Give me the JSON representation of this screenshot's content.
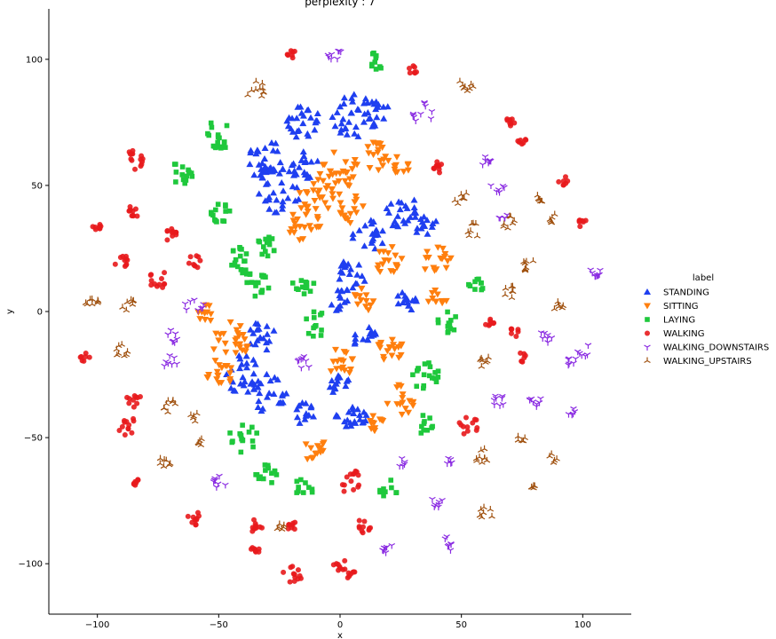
{
  "chart_data": {
    "type": "scatter",
    "title": "perplexity : 7",
    "xlabel": "x",
    "ylabel": "y",
    "xlim": [
      -120,
      120
    ],
    "ylim": [
      -120,
      120
    ],
    "x_ticks": [
      -100,
      -50,
      0,
      50,
      100
    ],
    "y_ticks": [
      -100,
      -50,
      0,
      50,
      100
    ],
    "x_tick_labels": [
      "−100",
      "−50",
      "0",
      "50",
      "100"
    ],
    "y_tick_labels": [
      "−100",
      "−50",
      "0",
      "50",
      "100"
    ],
    "grid": false,
    "legend_title": "label",
    "legend_position": "right",
    "series": [
      {
        "name": "STANDING",
        "marker": "triangle-up",
        "color": "#1f3ff0",
        "clusters": [
          {
            "x": -30,
            "y": 60,
            "r": 8,
            "n": 30
          },
          {
            "x": -15,
            "y": 75,
            "r": 7,
            "n": 25
          },
          {
            "x": 5,
            "y": 78,
            "r": 9,
            "n": 28
          },
          {
            "x": 15,
            "y": 78,
            "r": 6,
            "n": 18
          },
          {
            "x": -25,
            "y": 48,
            "r": 9,
            "n": 28
          },
          {
            "x": -15,
            "y": 58,
            "r": 6,
            "n": 18
          },
          {
            "x": 25,
            "y": 40,
            "r": 7,
            "n": 22
          },
          {
            "x": 35,
            "y": 35,
            "r": 5,
            "n": 14
          },
          {
            "x": 12,
            "y": 30,
            "r": 7,
            "n": 20
          },
          {
            "x": 5,
            "y": 15,
            "r": 6,
            "n": 18
          },
          {
            "x": 0,
            "y": 5,
            "r": 5,
            "n": 14
          },
          {
            "x": 28,
            "y": 5,
            "r": 5,
            "n": 14
          },
          {
            "x": -32,
            "y": -10,
            "r": 6,
            "n": 18
          },
          {
            "x": -40,
            "y": -25,
            "r": 8,
            "n": 25
          },
          {
            "x": -30,
            "y": -32,
            "r": 8,
            "n": 24
          },
          {
            "x": -15,
            "y": -40,
            "r": 5,
            "n": 14
          },
          {
            "x": 5,
            "y": -40,
            "r": 7,
            "n": 22
          },
          {
            "x": 0,
            "y": -30,
            "r": 5,
            "n": 14
          },
          {
            "x": 10,
            "y": -10,
            "r": 5,
            "n": 14
          }
        ]
      },
      {
        "name": "SITTING",
        "marker": "triangle-down",
        "color": "#ff7f0e",
        "clusters": [
          {
            "x": 0,
            "y": 55,
            "r": 9,
            "n": 28
          },
          {
            "x": 15,
            "y": 62,
            "r": 6,
            "n": 18
          },
          {
            "x": -10,
            "y": 45,
            "r": 8,
            "n": 24
          },
          {
            "x": -15,
            "y": 35,
            "r": 7,
            "n": 20
          },
          {
            "x": 5,
            "y": 40,
            "r": 6,
            "n": 16
          },
          {
            "x": 25,
            "y": 58,
            "r": 4,
            "n": 10
          },
          {
            "x": 20,
            "y": 20,
            "r": 6,
            "n": 18
          },
          {
            "x": 40,
            "y": 20,
            "r": 6,
            "n": 16
          },
          {
            "x": 40,
            "y": 5,
            "r": 4,
            "n": 10
          },
          {
            "x": 10,
            "y": 5,
            "r": 5,
            "n": 14
          },
          {
            "x": -45,
            "y": -12,
            "r": 8,
            "n": 24
          },
          {
            "x": -50,
            "y": -25,
            "r": 6,
            "n": 18
          },
          {
            "x": -55,
            "y": 0,
            "r": 4,
            "n": 10
          },
          {
            "x": 0,
            "y": -20,
            "r": 6,
            "n": 16
          },
          {
            "x": 20,
            "y": -15,
            "r": 6,
            "n": 18
          },
          {
            "x": 25,
            "y": -35,
            "r": 6,
            "n": 16
          },
          {
            "x": 15,
            "y": -45,
            "r": 4,
            "n": 12
          },
          {
            "x": -10,
            "y": -55,
            "r": 5,
            "n": 14
          }
        ]
      },
      {
        "name": "LAYING",
        "marker": "square",
        "color": "#1fc83c",
        "clusters": [
          {
            "x": -50,
            "y": 70,
            "r": 6,
            "n": 18
          },
          {
            "x": -65,
            "y": 55,
            "r": 5,
            "n": 14
          },
          {
            "x": -50,
            "y": 40,
            "r": 5,
            "n": 14
          },
          {
            "x": -40,
            "y": 20,
            "r": 6,
            "n": 18
          },
          {
            "x": -30,
            "y": 25,
            "r": 5,
            "n": 14
          },
          {
            "x": -35,
            "y": 10,
            "r": 6,
            "n": 16
          },
          {
            "x": -15,
            "y": 10,
            "r": 5,
            "n": 12
          },
          {
            "x": -10,
            "y": -5,
            "r": 5,
            "n": 12
          },
          {
            "x": 15,
            "y": 100,
            "r": 4,
            "n": 10
          },
          {
            "x": 55,
            "y": 10,
            "r": 4,
            "n": 10
          },
          {
            "x": 45,
            "y": -5,
            "r": 5,
            "n": 12
          },
          {
            "x": 35,
            "y": -25,
            "r": 6,
            "n": 18
          },
          {
            "x": 35,
            "y": -45,
            "r": 4,
            "n": 10
          },
          {
            "x": -40,
            "y": -50,
            "r": 6,
            "n": 16
          },
          {
            "x": -30,
            "y": -65,
            "r": 5,
            "n": 14
          },
          {
            "x": -15,
            "y": -70,
            "r": 4,
            "n": 10
          },
          {
            "x": 20,
            "y": -70,
            "r": 4,
            "n": 10
          }
        ]
      },
      {
        "name": "WALKING",
        "marker": "circle",
        "color": "#e8191c",
        "clusters": [
          {
            "x": -20,
            "y": 102,
            "r": 2,
            "n": 8
          },
          {
            "x": 30,
            "y": 96,
            "r": 2,
            "n": 7
          },
          {
            "x": -85,
            "y": 60,
            "r": 4,
            "n": 14
          },
          {
            "x": -85,
            "y": 40,
            "r": 3,
            "n": 10
          },
          {
            "x": -100,
            "y": 33,
            "r": 2,
            "n": 8
          },
          {
            "x": -90,
            "y": 20,
            "r": 3,
            "n": 10
          },
          {
            "x": -70,
            "y": 30,
            "r": 3,
            "n": 10
          },
          {
            "x": -75,
            "y": 13,
            "r": 4,
            "n": 12
          },
          {
            "x": -60,
            "y": 20,
            "r": 3,
            "n": 9
          },
          {
            "x": 40,
            "y": 57,
            "r": 3,
            "n": 10
          },
          {
            "x": 70,
            "y": 75,
            "r": 2,
            "n": 8
          },
          {
            "x": 75,
            "y": 67,
            "r": 2,
            "n": 7
          },
          {
            "x": 92,
            "y": 52,
            "r": 2,
            "n": 7
          },
          {
            "x": 100,
            "y": 35,
            "r": 2,
            "n": 7
          },
          {
            "x": 62,
            "y": -5,
            "r": 2,
            "n": 7
          },
          {
            "x": 72,
            "y": -8,
            "r": 2,
            "n": 7
          },
          {
            "x": 75,
            "y": -18,
            "r": 2,
            "n": 7
          },
          {
            "x": -105,
            "y": -18,
            "r": 2,
            "n": 7
          },
          {
            "x": -85,
            "y": -35,
            "r": 3,
            "n": 10
          },
          {
            "x": -88,
            "y": -45,
            "r": 4,
            "n": 12
          },
          {
            "x": 53,
            "y": -45,
            "r": 4,
            "n": 12
          },
          {
            "x": -85,
            "y": -67,
            "r": 2,
            "n": 7
          },
          {
            "x": 5,
            "y": -68,
            "r": 5,
            "n": 14
          },
          {
            "x": -60,
            "y": -82,
            "r": 3,
            "n": 10
          },
          {
            "x": -35,
            "y": -85,
            "r": 3,
            "n": 10
          },
          {
            "x": -20,
            "y": -85,
            "r": 2,
            "n": 8
          },
          {
            "x": 10,
            "y": -85,
            "r": 3,
            "n": 10
          },
          {
            "x": -35,
            "y": -95,
            "r": 2,
            "n": 8
          },
          {
            "x": -20,
            "y": -105,
            "r": 4,
            "n": 12
          },
          {
            "x": 0,
            "y": -100,
            "r": 3,
            "n": 9
          },
          {
            "x": 5,
            "y": -105,
            "r": 2,
            "n": 7
          }
        ]
      },
      {
        "name": "WALKING_DOWNSTAIRS",
        "marker": "tri-down",
        "color": "#8a2be2",
        "clusters": [
          {
            "x": -2,
            "y": 102,
            "r": 3,
            "n": 8
          },
          {
            "x": 35,
            "y": 78,
            "r": 5,
            "n": 10
          },
          {
            "x": 60,
            "y": 60,
            "r": 3,
            "n": 8
          },
          {
            "x": 65,
            "y": 50,
            "r": 3,
            "n": 6
          },
          {
            "x": 67,
            "y": 38,
            "r": 2,
            "n": 5
          },
          {
            "x": 105,
            "y": 15,
            "r": 3,
            "n": 9
          },
          {
            "x": 85,
            "y": -10,
            "r": 3,
            "n": 7
          },
          {
            "x": 95,
            "y": -20,
            "r": 3,
            "n": 6
          },
          {
            "x": 100,
            "y": -15,
            "r": 3,
            "n": 6
          },
          {
            "x": 80,
            "y": -35,
            "r": 3,
            "n": 8
          },
          {
            "x": 65,
            "y": -35,
            "r": 3,
            "n": 8
          },
          {
            "x": -60,
            "y": 2,
            "r": 4,
            "n": 8
          },
          {
            "x": -70,
            "y": -10,
            "r": 3,
            "n": 7
          },
          {
            "x": -70,
            "y": -20,
            "r": 3,
            "n": 7
          },
          {
            "x": -15,
            "y": -20,
            "r": 3,
            "n": 8
          },
          {
            "x": -50,
            "y": -68,
            "r": 3,
            "n": 8
          },
          {
            "x": 25,
            "y": -60,
            "r": 2,
            "n": 5
          },
          {
            "x": 40,
            "y": -75,
            "r": 3,
            "n": 7
          },
          {
            "x": 45,
            "y": -92,
            "r": 3,
            "n": 7
          },
          {
            "x": 20,
            "y": -95,
            "r": 3,
            "n": 7
          },
          {
            "x": 45,
            "y": -60,
            "r": 2,
            "n": 5
          },
          {
            "x": 95,
            "y": -40,
            "r": 2,
            "n": 5
          }
        ]
      },
      {
        "name": "WALKING_UPSTAIRS",
        "marker": "tri-up",
        "color": "#a0510f",
        "clusters": [
          {
            "x": -35,
            "y": 88,
            "r": 4,
            "n": 10
          },
          {
            "x": 52,
            "y": 90,
            "r": 3,
            "n": 8
          },
          {
            "x": 50,
            "y": 45,
            "r": 3,
            "n": 7
          },
          {
            "x": 55,
            "y": 32,
            "r": 3,
            "n": 7
          },
          {
            "x": 70,
            "y": 35,
            "r": 3,
            "n": 7
          },
          {
            "x": 82,
            "y": 45,
            "r": 2,
            "n": 6
          },
          {
            "x": 88,
            "y": 37,
            "r": 2,
            "n": 6
          },
          {
            "x": 78,
            "y": 18,
            "r": 3,
            "n": 8
          },
          {
            "x": 70,
            "y": 8,
            "r": 3,
            "n": 7
          },
          {
            "x": 90,
            "y": 2,
            "r": 3,
            "n": 7
          },
          {
            "x": 60,
            "y": -20,
            "r": 3,
            "n": 7
          },
          {
            "x": -102,
            "y": 3,
            "r": 3,
            "n": 8
          },
          {
            "x": -87,
            "y": 3,
            "r": 3,
            "n": 7
          },
          {
            "x": -90,
            "y": -15,
            "r": 3,
            "n": 8
          },
          {
            "x": -70,
            "y": -38,
            "r": 3,
            "n": 8
          },
          {
            "x": -60,
            "y": -42,
            "r": 2,
            "n": 5
          },
          {
            "x": -58,
            "y": -52,
            "r": 2,
            "n": 5
          },
          {
            "x": -72,
            "y": -60,
            "r": 3,
            "n": 7
          },
          {
            "x": 60,
            "y": -58,
            "r": 4,
            "n": 9
          },
          {
            "x": 75,
            "y": -50,
            "r": 2,
            "n": 5
          },
          {
            "x": 88,
            "y": -58,
            "r": 2,
            "n": 5
          },
          {
            "x": 80,
            "y": -70,
            "r": 2,
            "n": 5
          },
          {
            "x": 60,
            "y": -80,
            "r": 3,
            "n": 7
          },
          {
            "x": -25,
            "y": -85,
            "r": 2,
            "n": 6
          }
        ]
      }
    ]
  }
}
